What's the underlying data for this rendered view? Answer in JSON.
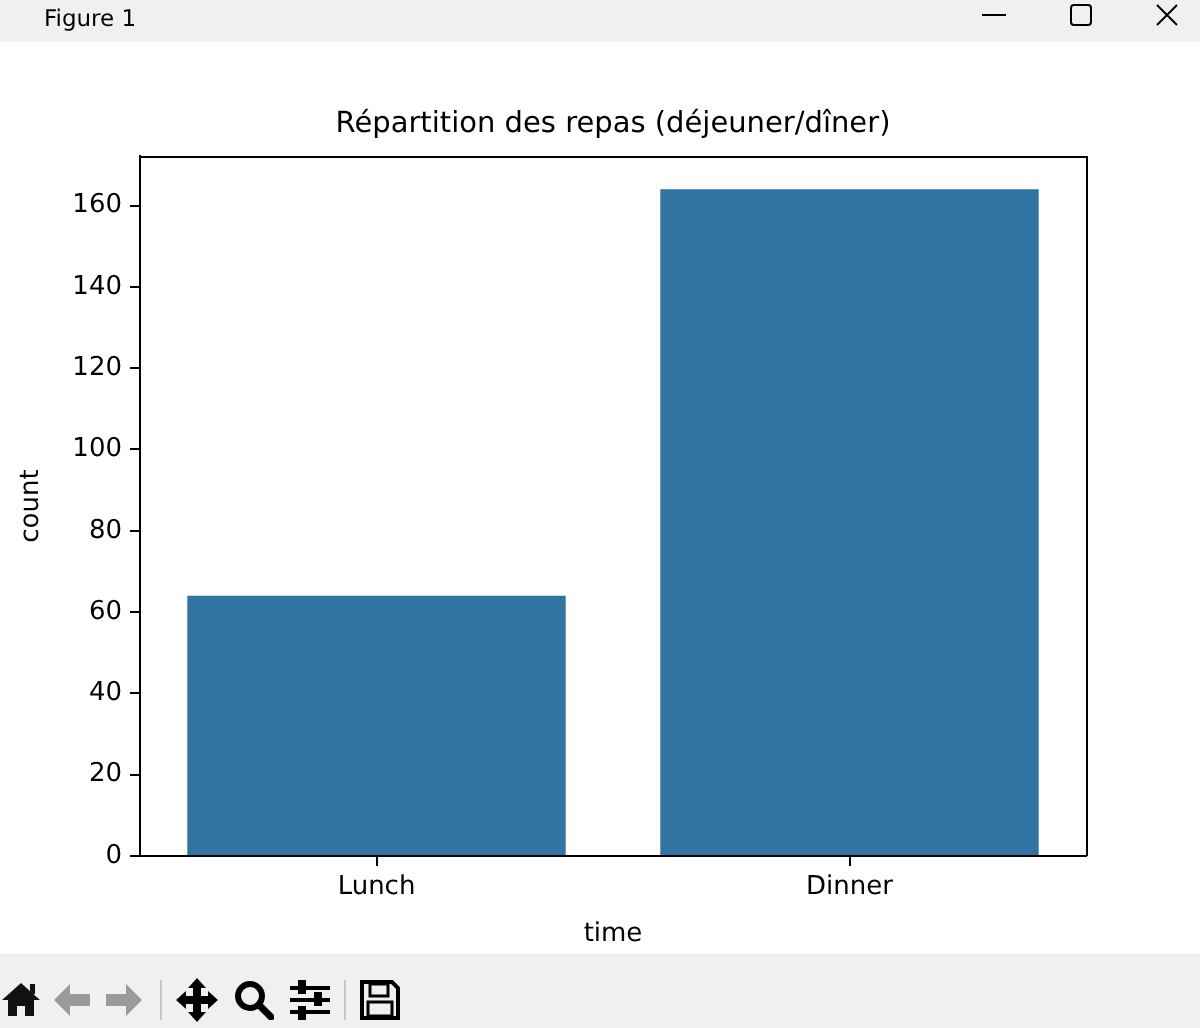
{
  "chart_data": {
    "type": "bar",
    "title": "Répartition des repas (déjeuner/dîner)",
    "xlabel": "time",
    "ylabel": "count",
    "categories": [
      "Lunch",
      "Dinner"
    ],
    "values": [
      64,
      164
    ],
    "color": "#3274a1",
    "ylim": [
      0,
      172.2
    ],
    "yticks": [
      0,
      20,
      40,
      60,
      80,
      100,
      120,
      140,
      160
    ],
    "annotations": [
      "Figure 1"
    ]
  }
}
